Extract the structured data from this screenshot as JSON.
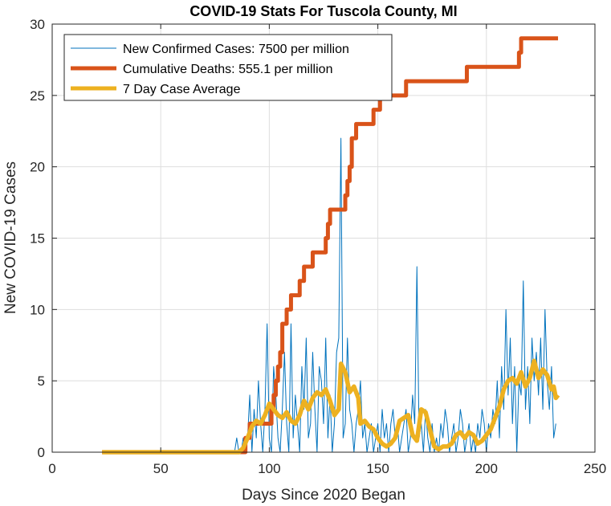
{
  "chart_data": {
    "type": "line",
    "title": "COVID-19 Stats For Tuscola County, MI",
    "xlabel": "Days Since 2020 Began",
    "ylabel": "New COVID-19 Cases",
    "xlim": [
      0,
      250
    ],
    "ylim": [
      0,
      30
    ],
    "xticks": [
      0,
      50,
      100,
      150,
      200,
      250
    ],
    "yticks": [
      0,
      5,
      10,
      15,
      20,
      25,
      30
    ],
    "grid": true,
    "legend_position": "top-left",
    "series": [
      {
        "name": "New Confirmed Cases: 7500 per million",
        "color": "#0072BD",
        "style": "thin",
        "points": [
          [
            23,
            0
          ],
          [
            60,
            0
          ],
          [
            84,
            0
          ],
          [
            85,
            1
          ],
          [
            86,
            0
          ],
          [
            87,
            0
          ],
          [
            88,
            1
          ],
          [
            89,
            0
          ],
          [
            90,
            1
          ],
          [
            91,
            4
          ],
          [
            92,
            0
          ],
          [
            93,
            3
          ],
          [
            94,
            1
          ],
          [
            95,
            5
          ],
          [
            96,
            2
          ],
          [
            97,
            0
          ],
          [
            98,
            3
          ],
          [
            99,
            9
          ],
          [
            100,
            1
          ],
          [
            101,
            0
          ],
          [
            102,
            6
          ],
          [
            103,
            4
          ],
          [
            104,
            1
          ],
          [
            105,
            0
          ],
          [
            106,
            3
          ],
          [
            107,
            7
          ],
          [
            108,
            2
          ],
          [
            109,
            0
          ],
          [
            110,
            9
          ],
          [
            111,
            1
          ],
          [
            112,
            4
          ],
          [
            113,
            2
          ],
          [
            114,
            0
          ],
          [
            115,
            6
          ],
          [
            116,
            3
          ],
          [
            117,
            8
          ],
          [
            118,
            1
          ],
          [
            119,
            2
          ],
          [
            120,
            7
          ],
          [
            121,
            3
          ],
          [
            122,
            0
          ],
          [
            123,
            6
          ],
          [
            124,
            5
          ],
          [
            125,
            2
          ],
          [
            126,
            8
          ],
          [
            127,
            1
          ],
          [
            128,
            4
          ],
          [
            129,
            0
          ],
          [
            130,
            2
          ],
          [
            131,
            7
          ],
          [
            132,
            8
          ],
          [
            133,
            22
          ],
          [
            134,
            1
          ],
          [
            135,
            2
          ],
          [
            136,
            8
          ],
          [
            137,
            3
          ],
          [
            138,
            2
          ],
          [
            139,
            0
          ],
          [
            140,
            2
          ],
          [
            141,
            3
          ],
          [
            142,
            5
          ],
          [
            143,
            1
          ],
          [
            144,
            2
          ],
          [
            145,
            0
          ],
          [
            146,
            1
          ],
          [
            147,
            2
          ],
          [
            148,
            0
          ],
          [
            149,
            1
          ],
          [
            150,
            2
          ],
          [
            151,
            0
          ],
          [
            152,
            3
          ],
          [
            153,
            1
          ],
          [
            154,
            2
          ],
          [
            155,
            0
          ],
          [
            156,
            2
          ],
          [
            157,
            3
          ],
          [
            158,
            1
          ],
          [
            159,
            2
          ],
          [
            160,
            0
          ],
          [
            161,
            1
          ],
          [
            162,
            2
          ],
          [
            163,
            3
          ],
          [
            164,
            0
          ],
          [
            165,
            1
          ],
          [
            166,
            4
          ],
          [
            167,
            2
          ],
          [
            168,
            13
          ],
          [
            169,
            1
          ],
          [
            170,
            2
          ],
          [
            171,
            0
          ],
          [
            172,
            3
          ],
          [
            173,
            1
          ],
          [
            174,
            0
          ],
          [
            175,
            2
          ],
          [
            176,
            0
          ],
          [
            177,
            1
          ],
          [
            178,
            0
          ],
          [
            179,
            2
          ],
          [
            180,
            1
          ],
          [
            181,
            3
          ],
          [
            182,
            2
          ],
          [
            183,
            0
          ],
          [
            184,
            1
          ],
          [
            185,
            2
          ],
          [
            186,
            0
          ],
          [
            187,
            1
          ],
          [
            188,
            3
          ],
          [
            189,
            2
          ],
          [
            190,
            0
          ],
          [
            191,
            1
          ],
          [
            192,
            2
          ],
          [
            193,
            0
          ],
          [
            194,
            1
          ],
          [
            195,
            0
          ],
          [
            196,
            2
          ],
          [
            197,
            1
          ],
          [
            198,
            3
          ],
          [
            199,
            2
          ],
          [
            200,
            0
          ],
          [
            201,
            2
          ],
          [
            202,
            1
          ],
          [
            203,
            3
          ],
          [
            204,
            2
          ],
          [
            205,
            5
          ],
          [
            206,
            1
          ],
          [
            207,
            6
          ],
          [
            208,
            3
          ],
          [
            209,
            10
          ],
          [
            210,
            4
          ],
          [
            211,
            8
          ],
          [
            212,
            2
          ],
          [
            213,
            6
          ],
          [
            214,
            0
          ],
          [
            215,
            5
          ],
          [
            216,
            4
          ],
          [
            217,
            12
          ],
          [
            218,
            3
          ],
          [
            219,
            6
          ],
          [
            220,
            2
          ],
          [
            221,
            8
          ],
          [
            222,
            5
          ],
          [
            223,
            7
          ],
          [
            224,
            4
          ],
          [
            225,
            8
          ],
          [
            226,
            3
          ],
          [
            227,
            10
          ],
          [
            228,
            5
          ],
          [
            229,
            3
          ],
          [
            230,
            6
          ],
          [
            231,
            1
          ],
          [
            232,
            2
          ]
        ]
      },
      {
        "name": "Cumulative Deaths: 555.1 per million",
        "color": "#D95319",
        "style": "thick-step",
        "points": [
          [
            23,
            0
          ],
          [
            88,
            0
          ],
          [
            89,
            1
          ],
          [
            91,
            2
          ],
          [
            100,
            2
          ],
          [
            101,
            3
          ],
          [
            102,
            4
          ],
          [
            103,
            5
          ],
          [
            104,
            6
          ],
          [
            105,
            7
          ],
          [
            106,
            9
          ],
          [
            108,
            10
          ],
          [
            110,
            11
          ],
          [
            114,
            12
          ],
          [
            116,
            13
          ],
          [
            120,
            14
          ],
          [
            126,
            15
          ],
          [
            127,
            16
          ],
          [
            128,
            17
          ],
          [
            135,
            18
          ],
          [
            136,
            19
          ],
          [
            137,
            20
          ],
          [
            138,
            22
          ],
          [
            140,
            23
          ],
          [
            148,
            24
          ],
          [
            151,
            25
          ],
          [
            163,
            26
          ],
          [
            180,
            26
          ],
          [
            191,
            27
          ],
          [
            215,
            28
          ],
          [
            216,
            29
          ],
          [
            233,
            29
          ]
        ]
      },
      {
        "name": "7 Day Case Average",
        "color": "#EDB120",
        "style": "thick",
        "points": [
          [
            23,
            0
          ],
          [
            80,
            0
          ],
          [
            86,
            0
          ],
          [
            88,
            0.3
          ],
          [
            90,
            1.0
          ],
          [
            92,
            1.8
          ],
          [
            94,
            2.2
          ],
          [
            96,
            2.0
          ],
          [
            98,
            2.6
          ],
          [
            100,
            3.4
          ],
          [
            102,
            3.0
          ],
          [
            104,
            2.6
          ],
          [
            106,
            2.4
          ],
          [
            108,
            2.8
          ],
          [
            110,
            2.2
          ],
          [
            112,
            2.0
          ],
          [
            114,
            2.6
          ],
          [
            116,
            3.6
          ],
          [
            118,
            3.0
          ],
          [
            120,
            3.8
          ],
          [
            122,
            4.2
          ],
          [
            124,
            4.0
          ],
          [
            126,
            4.4
          ],
          [
            128,
            3.6
          ],
          [
            130,
            2.6
          ],
          [
            132,
            3.0
          ],
          [
            133,
            6.2
          ],
          [
            135,
            5.6
          ],
          [
            137,
            4.2
          ],
          [
            139,
            4.6
          ],
          [
            141,
            3.8
          ],
          [
            142,
            2.0
          ],
          [
            144,
            2.2
          ],
          [
            146,
            1.8
          ],
          [
            148,
            1.6
          ],
          [
            150,
            1.0
          ],
          [
            152,
            0.6
          ],
          [
            154,
            0.4
          ],
          [
            156,
            0.6
          ],
          [
            158,
            1.0
          ],
          [
            160,
            2.2
          ],
          [
            162,
            2.4
          ],
          [
            164,
            2.6
          ],
          [
            166,
            1.2
          ],
          [
            168,
            0.8
          ],
          [
            170,
            3.0
          ],
          [
            172,
            2.8
          ],
          [
            174,
            1.6
          ],
          [
            176,
            0.4
          ],
          [
            178,
            0.2
          ],
          [
            180,
            0.4
          ],
          [
            182,
            0.4
          ],
          [
            184,
            0.6
          ],
          [
            186,
            1.2
          ],
          [
            188,
            1.4
          ],
          [
            190,
            1.0
          ],
          [
            192,
            1.4
          ],
          [
            194,
            1.2
          ],
          [
            196,
            0.6
          ],
          [
            198,
            0.8
          ],
          [
            200,
            1.2
          ],
          [
            202,
            1.6
          ],
          [
            204,
            2.4
          ],
          [
            206,
            3.2
          ],
          [
            208,
            4.4
          ],
          [
            210,
            5.0
          ],
          [
            212,
            5.2
          ],
          [
            214,
            4.8
          ],
          [
            216,
            5.6
          ],
          [
            218,
            4.6
          ],
          [
            220,
            5.2
          ],
          [
            222,
            6.4
          ],
          [
            224,
            5.2
          ],
          [
            226,
            5.8
          ],
          [
            228,
            5.4
          ],
          [
            230,
            4.4
          ],
          [
            231,
            4.6
          ],
          [
            232,
            3.8
          ],
          [
            233,
            4.0
          ]
        ]
      }
    ]
  }
}
